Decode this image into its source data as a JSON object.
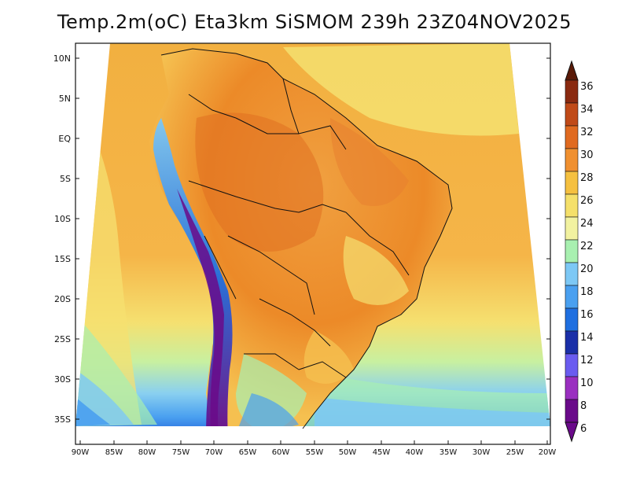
{
  "title": "Temp.2m(oC) Eta3km SiSMOM 239h 23Z04NOV2025",
  "lat_labels": [
    "10N",
    "5N",
    "EQ",
    "5S",
    "10S",
    "15S",
    "20S",
    "25S",
    "30S",
    "35S"
  ],
  "lon_labels": [
    "90W",
    "85W",
    "80W",
    "75W",
    "70W",
    "65W",
    "60W",
    "55W",
    "50W",
    "45W",
    "40W",
    "35W",
    "30W",
    "25W",
    "20W"
  ],
  "colorbar": {
    "labels": [
      "6",
      "8",
      "10",
      "12",
      "14",
      "16",
      "18",
      "20",
      "22",
      "24",
      "26",
      "28",
      "30",
      "32",
      "34",
      "36"
    ],
    "colors": [
      "#6a0a8a",
      "#9a2fc0",
      "#6a5cf0",
      "#1a2fa8",
      "#1f6fe0",
      "#4aa0f0",
      "#7dc8f5",
      "#a8f0b0",
      "#f2f2a0",
      "#f5e06a",
      "#f5c040",
      "#f09030",
      "#e06a20",
      "#c04a18",
      "#8a2a10",
      "#5a1a08"
    ]
  },
  "legend_gradient": [
    "#6a0a8a",
    "#9a2fc0",
    "#6a5cf0",
    "#1a2fa8",
    "#1f6fe0",
    "#4aa0f0",
    "#7dc8f5",
    "#a8f0b0",
    "#f2f2a0",
    "#f5e06a",
    "#f5c040",
    "#f09030",
    "#e06a20",
    "#c04a18",
    "#8a2a10",
    "#5a1a08"
  ]
}
